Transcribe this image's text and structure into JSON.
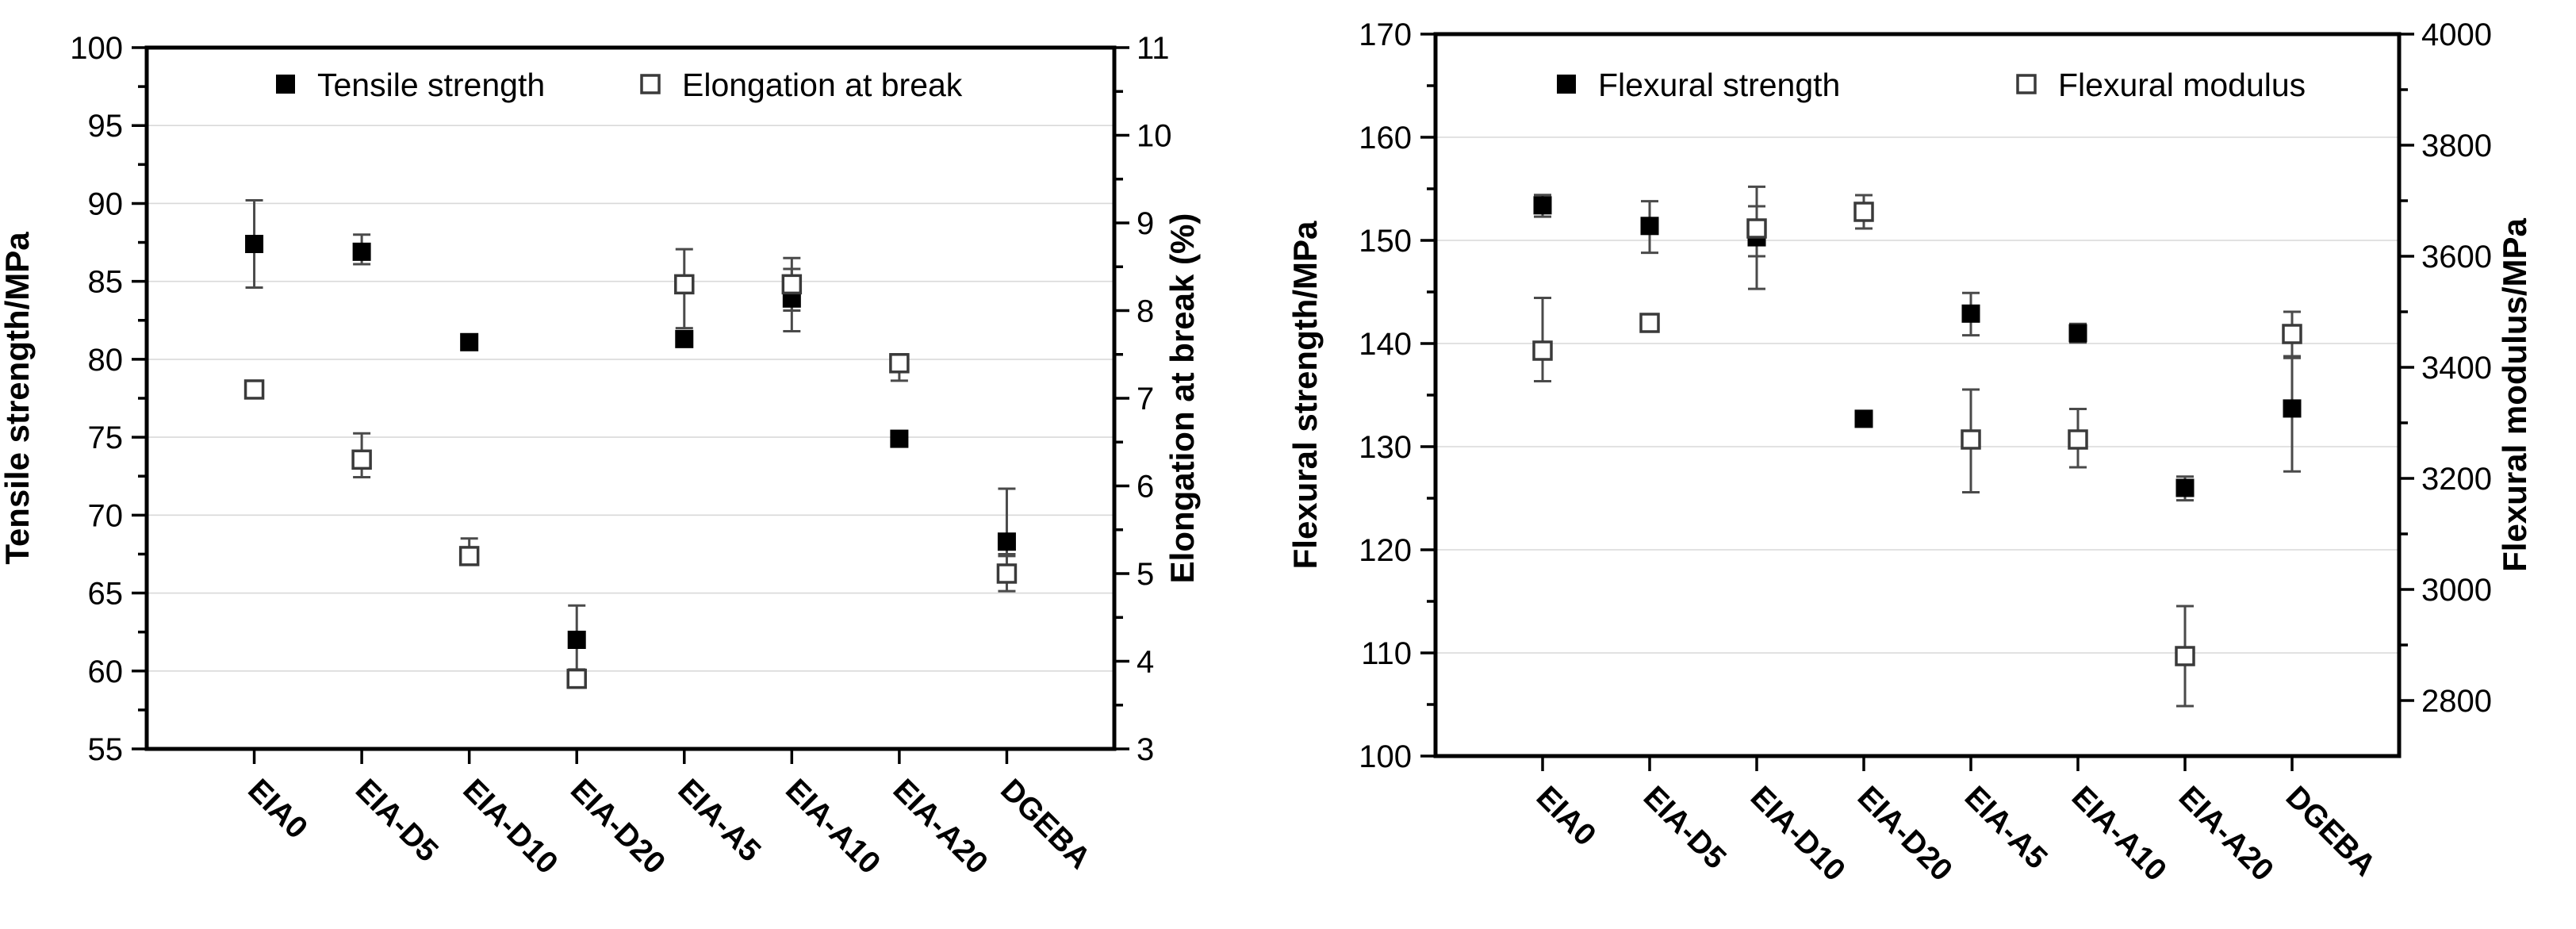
{
  "figure": {
    "background": "#ffffff",
    "marker_filled_color": "#000000",
    "marker_open_stroke": "#3a3a3a",
    "error_bar_color": "#4a4a4a",
    "gridline_color": "#d9d9d9",
    "frame_color": "#000000"
  },
  "chart_data": [
    {
      "type": "scatter",
      "title": "",
      "grid": "horizontal-major",
      "legend_position": "top-inside",
      "categories": [
        "EIA0",
        "EIA-D5",
        "EIA-D10",
        "EIA-D20",
        "EIA-A5",
        "EIA-A10",
        "EIA-A20",
        "DGEBA"
      ],
      "left_axis": {
        "label": "Tensile strength/MPa",
        "min": 55,
        "max": 100,
        "major_step": 5,
        "minor_step": 2.5
      },
      "right_axis": {
        "label": "Elongation at break (%)",
        "min": 3,
        "max": 11,
        "major_step": 1,
        "minor_step": 0.5
      },
      "series": [
        {
          "name": "Tensile strength",
          "axis": "left",
          "marker": "filled-square",
          "values": [
            87.4,
            86.9,
            81.1,
            62.0,
            81.3,
            83.9,
            74.9,
            68.3
          ],
          "error_ranges": [
            [
              84.6,
              90.2
            ],
            [
              86.1,
              88.0
            ],
            null,
            [
              60.1,
              64.2
            ],
            null,
            [
              81.8,
              85.8
            ],
            null,
            [
              67.5,
              71.7
            ]
          ]
        },
        {
          "name": "Elongation at break",
          "axis": "right",
          "marker": "open-square",
          "values": [
            7.1,
            6.3,
            5.2,
            3.8,
            8.3,
            8.3,
            7.4,
            5.0
          ],
          "error_ranges": [
            null,
            [
              6.1,
              6.6
            ],
            [
              5.1,
              5.4
            ],
            [
              3.7,
              3.9
            ],
            [
              7.8,
              8.7
            ],
            [
              8.0,
              8.6
            ],
            [
              7.2,
              7.5
            ],
            [
              4.8,
              5.2
            ]
          ]
        }
      ]
    },
    {
      "type": "scatter",
      "title": "",
      "grid": "horizontal-major",
      "legend_position": "top-inside",
      "categories": [
        "EIA0",
        "EIA-D5",
        "EIA-D10",
        "EIA-D20",
        "EIA-A5",
        "EIA-A10",
        "EIA-A20",
        "DGEBA"
      ],
      "left_axis": {
        "label": "Flexural strength/MPa",
        "min": 100,
        "max": 170,
        "major_step": 10,
        "minor_step": 5
      },
      "right_axis": {
        "label": "Flexural modulus/MPa",
        "min": 2700,
        "max": 4000,
        "major_step": 200,
        "minor_step": 100,
        "label_min": 2800
      },
      "series": [
        {
          "name": "Flexural strength",
          "axis": "left",
          "marker": "filled-square",
          "values": [
            153.4,
            151.4,
            150.3,
            132.7,
            142.9,
            141.0,
            126.0,
            133.7
          ],
          "error_ranges": [
            [
              152.3,
              154.4
            ],
            [
              148.8,
              153.8
            ],
            [
              145.3,
              155.2
            ],
            null,
            [
              140.8,
              144.9
            ],
            [
              140.1,
              141.9
            ],
            [
              124.8,
              127.1
            ],
            [
              127.6,
              138.6
            ]
          ]
        },
        {
          "name": "Flexural modulus",
          "axis": "right",
          "marker": "open-square",
          "values": [
            3430,
            3480,
            3650,
            3680,
            3270,
            3270,
            2880,
            3460
          ],
          "error_ranges": [
            [
              3375,
              3525
            ],
            null,
            [
              3600,
              3690
            ],
            [
              3650,
              3710
            ],
            [
              3175,
              3360
            ],
            [
              3220,
              3325
            ],
            [
              2790,
              2970
            ],
            [
              3420,
              3500
            ]
          ]
        }
      ]
    }
  ]
}
